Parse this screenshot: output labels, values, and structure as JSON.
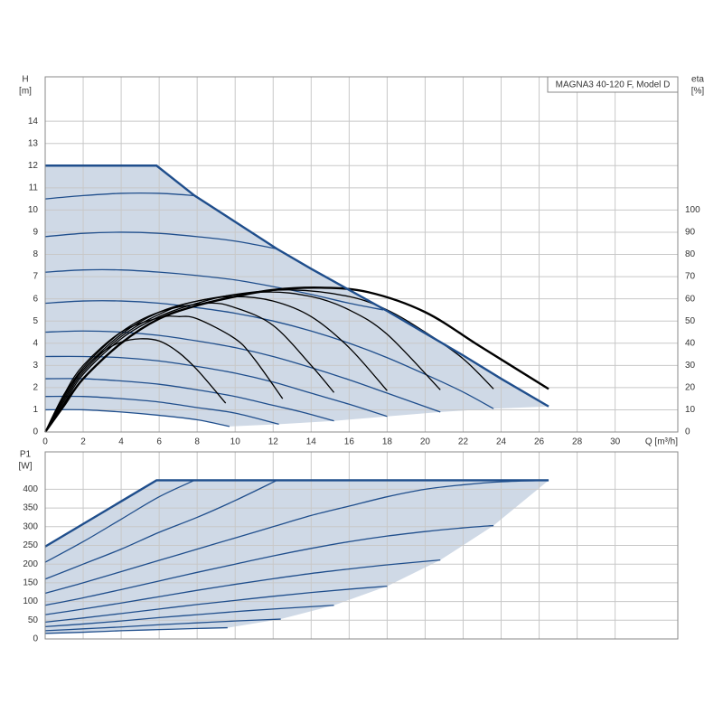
{
  "chart_data": [
    {
      "type": "line",
      "ylabel": "H",
      "yunit": "[m]",
      "y2label": "eta",
      "y2unit": "[%]",
      "xlabel": "Q [m³/h]",
      "annotation": "MAGNA3 40-120 F, Model D",
      "xlim": [
        0,
        33.3
      ],
      "xticks": [
        0,
        2,
        4,
        6,
        8,
        10,
        12,
        14,
        16,
        18,
        20,
        22,
        24,
        26,
        28,
        30
      ],
      "ylim": [
        0,
        16
      ],
      "yticks": [
        0,
        1,
        2,
        3,
        4,
        5,
        6,
        7,
        8,
        9,
        10,
        11,
        12,
        13,
        14
      ],
      "y2lim": [
        0,
        160
      ],
      "y2ticks": [
        0,
        10,
        20,
        30,
        40,
        50,
        60,
        70,
        80,
        90,
        100
      ],
      "grid": true,
      "area": {
        "color": "#cfd9e6",
        "line_color": "#1f4e8c",
        "upper": {
          "x": [
            0,
            5.86,
            7.86,
            12.2,
            14,
            16,
            18,
            20,
            22,
            24,
            26.5
          ],
          "values": [
            12,
            12,
            10.65,
            8.25,
            7.35,
            6.4,
            5.45,
            4.45,
            3.45,
            2.4,
            1.15
          ]
        },
        "lower": {
          "x": [
            0,
            2,
            4,
            6,
            8,
            9.7,
            12.3,
            15.2,
            18,
            20.8,
            23.6,
            26.5
          ],
          "values": [
            1.0,
            1.0,
            0.9,
            0.75,
            0.55,
            0.25,
            0.35,
            0.5,
            0.7,
            0.9,
            1.05,
            1.15
          ]
        }
      },
      "series": [
        {
          "color": "#1f4e8c",
          "x": [
            0,
            2,
            4,
            6,
            7.86
          ],
          "values": [
            10.5,
            10.65,
            10.75,
            10.75,
            10.65
          ]
        },
        {
          "color": "#1f4e8c",
          "x": [
            0,
            2,
            4,
            6,
            8,
            10,
            12.2
          ],
          "values": [
            8.8,
            8.95,
            9.0,
            8.95,
            8.8,
            8.6,
            8.25
          ]
        },
        {
          "color": "#1f4e8c",
          "x": [
            0,
            2,
            4,
            6,
            8,
            10,
            12,
            14,
            16,
            17.8
          ],
          "values": [
            7.2,
            7.3,
            7.3,
            7.2,
            7.05,
            6.85,
            6.55,
            6.2,
            5.8,
            5.5
          ]
        },
        {
          "color": "#1f4e8c",
          "x": [
            0,
            2,
            4,
            6,
            8,
            10,
            12,
            14,
            16,
            18,
            20,
            22,
            23.6
          ],
          "values": [
            5.8,
            5.9,
            5.9,
            5.8,
            5.6,
            5.35,
            5.0,
            4.55,
            4.0,
            3.35,
            2.6,
            1.8,
            1.05
          ]
        },
        {
          "color": "#1f4e8c",
          "x": [
            0,
            2,
            4,
            6,
            8,
            10,
            12,
            14,
            16,
            18,
            20.8
          ],
          "values": [
            4.5,
            4.55,
            4.5,
            4.35,
            4.1,
            3.8,
            3.4,
            2.9,
            2.35,
            1.75,
            0.9
          ]
        },
        {
          "color": "#1f4e8c",
          "x": [
            0,
            2,
            4,
            6,
            8,
            10,
            12,
            14,
            16,
            18
          ],
          "values": [
            3.4,
            3.4,
            3.35,
            3.2,
            2.95,
            2.65,
            2.25,
            1.75,
            1.25,
            0.7
          ]
        },
        {
          "color": "#1f4e8c",
          "x": [
            0,
            2,
            4,
            6,
            8,
            10,
            12,
            13.5,
            15.2
          ],
          "values": [
            2.4,
            2.4,
            2.3,
            2.15,
            1.9,
            1.6,
            1.2,
            0.9,
            0.5
          ]
        },
        {
          "color": "#1f4e8c",
          "x": [
            0,
            2,
            4,
            6,
            8,
            10,
            12.3
          ],
          "values": [
            1.6,
            1.6,
            1.5,
            1.35,
            1.1,
            0.85,
            0.35
          ]
        },
        {
          "color": "#1f4e8c",
          "x": [
            0,
            2,
            4,
            6,
            8,
            9.7
          ],
          "values": [
            1.0,
            1.0,
            0.9,
            0.75,
            0.55,
            0.25
          ]
        },
        {
          "color": "#000000",
          "axis": "y2",
          "x": [
            0,
            1,
            2,
            3,
            4,
            5,
            6,
            7,
            8,
            9.5
          ],
          "values": [
            0,
            17,
            28,
            36,
            40.5,
            42,
            41,
            36,
            28,
            13
          ]
        },
        {
          "color": "#000000",
          "axis": "y2",
          "x": [
            0,
            1,
            2,
            4,
            6,
            7,
            8,
            10,
            11,
            12.5
          ],
          "values": [
            0,
            17,
            30,
            45,
            51.5,
            52,
            51,
            42,
            33,
            15
          ]
        },
        {
          "color": "#000000",
          "axis": "y2",
          "x": [
            0,
            1,
            2,
            4,
            6,
            8.5,
            10,
            12,
            14,
            15.2
          ],
          "values": [
            0,
            16,
            29,
            45,
            54,
            58,
            56,
            48,
            30,
            17.8
          ]
        },
        {
          "color": "#000000",
          "axis": "y2",
          "x": [
            0,
            1,
            2,
            4,
            6,
            8,
            10,
            12,
            14,
            16,
            18
          ],
          "values": [
            0,
            15,
            28,
            44,
            54,
            59,
            61,
            59,
            52,
            38,
            18.6
          ]
        },
        {
          "color": "#000000",
          "axis": "y2",
          "x": [
            0,
            1,
            2,
            4,
            6,
            8,
            11.5,
            14,
            16,
            18,
            20.8
          ],
          "values": [
            0,
            14,
            27,
            43,
            53,
            59,
            63,
            61,
            55,
            44,
            19
          ]
        },
        {
          "color": "#000000",
          "axis": "y2",
          "x": [
            0,
            1,
            2,
            4,
            6,
            8,
            10,
            13,
            16,
            18,
            20,
            22,
            23.6
          ],
          "values": [
            0,
            13,
            26,
            42,
            52,
            58,
            62,
            64,
            61,
            55,
            45,
            33,
            19.4
          ]
        },
        {
          "color": "#000000",
          "axis": "y2",
          "x": [
            0,
            1,
            2,
            4,
            6,
            8,
            10,
            12,
            14.5,
            17,
            20,
            23,
            26.5
          ],
          "values": [
            0,
            12,
            24,
            40,
            51,
            57,
            61,
            64,
            65,
            63,
            54,
            38,
            19.4
          ]
        }
      ]
    },
    {
      "type": "line",
      "ylabel": "P1",
      "yunit": "[W]",
      "xlim": [
        0,
        33.3
      ],
      "ylim": [
        0,
        500
      ],
      "yticks": [
        0,
        50,
        100,
        150,
        200,
        250,
        300,
        350,
        400
      ],
      "grid": true,
      "area": {
        "color": "#cfd9e6",
        "line_color": "#1f4e8c",
        "upper": {
          "x": [
            0,
            5.86,
            26.5
          ],
          "values": [
            247,
            424,
            424
          ]
        },
        "lower": {
          "x": [
            0,
            2,
            4,
            6,
            8,
            9.6,
            12.4,
            15.2,
            18,
            20.8,
            23.6,
            26.5
          ],
          "values": [
            15,
            18,
            22,
            25,
            28,
            30,
            53,
            90,
            141,
            211,
            303,
            424
          ]
        }
      },
      "series": [
        {
          "color": "#1f4e8c",
          "x": [
            0,
            2,
            4,
            6,
            7.86
          ],
          "values": [
            205,
            260,
            320,
            380,
            424
          ]
        },
        {
          "color": "#1f4e8c",
          "x": [
            0,
            2,
            4,
            6,
            8,
            10,
            12.2
          ],
          "values": [
            160,
            200,
            240,
            285,
            325,
            370,
            424
          ]
        },
        {
          "color": "#1f4e8c",
          "x": [
            0,
            2,
            4,
            6,
            8,
            10,
            12,
            14,
            16,
            18,
            20,
            22,
            24,
            26.5
          ],
          "values": [
            122,
            150,
            180,
            210,
            240,
            270,
            300,
            330,
            355,
            380,
            400,
            412,
            420,
            424
          ]
        },
        {
          "color": "#1f4e8c",
          "x": [
            0,
            2,
            4,
            6,
            8,
            10,
            12,
            14,
            16,
            18,
            20,
            22,
            23.6
          ],
          "values": [
            90,
            110,
            132,
            155,
            178,
            200,
            222,
            242,
            260,
            275,
            287,
            297,
            303
          ]
        },
        {
          "color": "#1f4e8c",
          "x": [
            0,
            2,
            4,
            6,
            8,
            10,
            12,
            14,
            16,
            18,
            20.8
          ],
          "values": [
            65,
            80,
            96,
            113,
            130,
            146,
            161,
            175,
            187,
            198,
            211
          ]
        },
        {
          "color": "#1f4e8c",
          "x": [
            0,
            2,
            4,
            6,
            8,
            10,
            12,
            14,
            16,
            18
          ],
          "values": [
            45,
            56,
            68,
            80,
            92,
            103,
            114,
            124,
            133,
            141
          ]
        },
        {
          "color": "#1f4e8c",
          "x": [
            0,
            2,
            4,
            6,
            8,
            10,
            12,
            15.2
          ],
          "values": [
            33,
            40,
            48,
            57,
            65,
            73,
            80,
            90
          ]
        },
        {
          "color": "#1f4e8c",
          "x": [
            0,
            2,
            4,
            6,
            8,
            10,
            12.4
          ],
          "values": [
            22,
            27,
            32,
            38,
            43,
            48,
            53
          ]
        },
        {
          "color": "#1f4e8c",
          "x": [
            0,
            2,
            4,
            6,
            8,
            9.6
          ],
          "values": [
            15,
            18,
            22,
            25,
            28,
            30
          ]
        }
      ]
    }
  ]
}
